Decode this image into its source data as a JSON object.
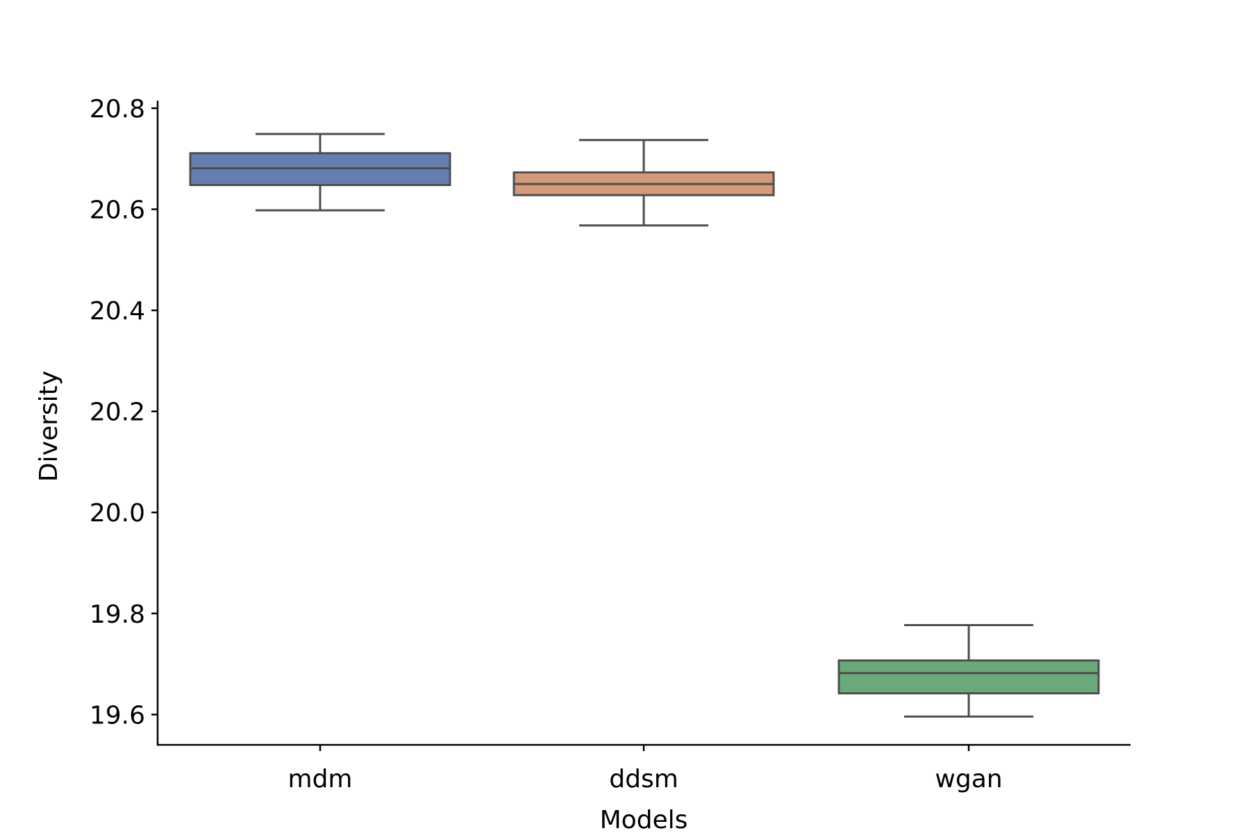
{
  "chart_data": {
    "type": "box",
    "xlabel": "Models",
    "ylabel": "Diversity",
    "ylim": [
      19.54,
      20.815
    ],
    "yticks": [
      19.6,
      19.8,
      20.0,
      20.2,
      20.4,
      20.6,
      20.8
    ],
    "ytick_labels": [
      "19.6",
      "19.8",
      "20.0",
      "20.2",
      "20.4",
      "20.6",
      "20.8"
    ],
    "grid": false,
    "legend": "none",
    "categories": [
      "mdm",
      "ddsm",
      "wgan"
    ],
    "boxes": [
      {
        "category": "mdm",
        "whislo": 20.598,
        "q1": 20.648,
        "median": 20.681,
        "q3": 20.711,
        "whishi": 20.749,
        "color": "#6580b0"
      },
      {
        "category": "ddsm",
        "whislo": 20.568,
        "q1": 20.628,
        "median": 20.65,
        "q3": 20.673,
        "whishi": 20.737,
        "color": "#d59a7a"
      },
      {
        "category": "wgan",
        "whislo": 19.596,
        "q1": 19.642,
        "median": 19.682,
        "q3": 19.707,
        "whishi": 19.777,
        "color": "#6aa97a"
      }
    ],
    "line_color": "#4d4d4d"
  }
}
